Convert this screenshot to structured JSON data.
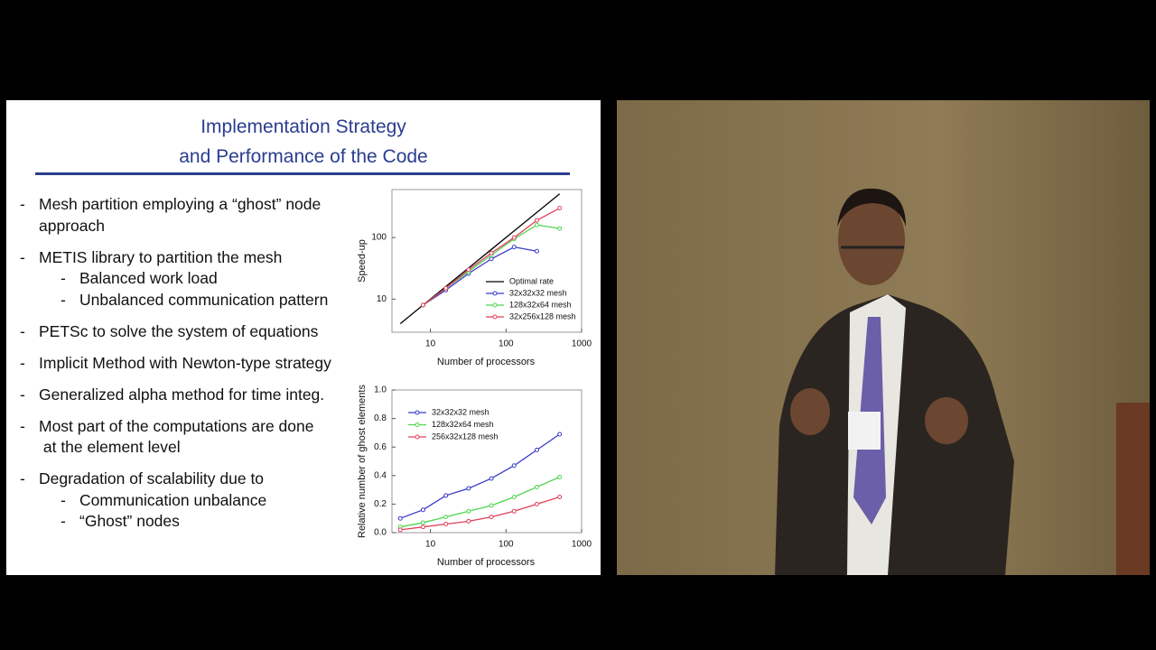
{
  "slide": {
    "title": [
      "Implementation Strategy",
      "and Performance of the Code"
    ],
    "bullets": [
      {
        "lines": [
          "Mesh partition employing a “ghost” node",
          "approach"
        ],
        "sub": []
      },
      {
        "lines": [
          "METIS library to partition the mesh"
        ],
        "sub": [
          "Balanced work load",
          "Unbalanced communication pattern"
        ]
      },
      {
        "lines": [
          "PETSc to solve the system of equations"
        ],
        "sub": []
      },
      {
        "lines": [
          "Implicit Method with Newton-type strategy"
        ],
        "sub": []
      },
      {
        "lines": [
          "Generalized alpha method for time integ."
        ],
        "sub": []
      },
      {
        "lines": [
          "Most part of the computations are done",
          " at the element level"
        ],
        "sub": []
      },
      {
        "lines": [
          "Degradation of scalability due to"
        ],
        "sub": [
          "Communication unbalance",
          "“Ghost” nodes"
        ]
      }
    ]
  },
  "chart_data": [
    {
      "type": "line",
      "xlabel": "Number of processors",
      "ylabel": "Speed-up",
      "x": [
        4,
        8,
        16,
        32,
        64,
        128,
        256,
        512
      ],
      "xscale": "log",
      "yscale": "log",
      "xlim": [
        3.1,
        1000
      ],
      "ylim": [
        2.9,
        600
      ],
      "xticks": [
        10,
        100,
        1000
      ],
      "yticks": [
        10,
        100
      ],
      "legend": "lower right",
      "series": [
        {
          "name": "Optimal rate",
          "color": "#000000",
          "markers": false,
          "values": [
            4,
            8,
            16,
            32,
            64,
            128,
            256,
            512
          ]
        },
        {
          "name": "32x32x32 mesh",
          "color": "#3a3ac8",
          "markers": true,
          "values": [
            null,
            8,
            14,
            26,
            45,
            70,
            60,
            null
          ]
        },
        {
          "name": "128x32x64 mesh",
          "color": "#4fd64f",
          "markers": true,
          "values": [
            null,
            8,
            15,
            28,
            52,
            95,
            160,
            140
          ]
        },
        {
          "name": "32x256x128 mesh",
          "color": "#e0405a",
          "markers": true,
          "values": [
            null,
            8,
            15,
            30,
            56,
            100,
            190,
            300
          ]
        }
      ]
    },
    {
      "type": "line",
      "xlabel": "Number of processors",
      "ylabel": "Relative number of ghost elements",
      "x": [
        4,
        8,
        16,
        32,
        64,
        128,
        256,
        512
      ],
      "xscale": "log",
      "yscale": "linear",
      "xlim": [
        3.1,
        1000
      ],
      "ylim": [
        0,
        1
      ],
      "xticks": [
        10,
        100,
        1000
      ],
      "yticks": [
        {
          "value": 0,
          "label": "0.0"
        },
        0.2,
        0.4,
        0.6,
        0.8,
        {
          "value": 1,
          "label": "1.0"
        }
      ],
      "legend": "upper left",
      "series": [
        {
          "name": "32x32x32 mesh",
          "color": "#3a3ac8",
          "markers": true,
          "values": [
            0.1,
            0.16,
            0.26,
            0.31,
            0.38,
            0.47,
            0.58,
            0.69
          ]
        },
        {
          "name": "128x32x64 mesh",
          "color": "#4fd64f",
          "markers": true,
          "values": [
            0.04,
            0.07,
            0.11,
            0.15,
            0.19,
            0.25,
            0.32,
            0.39
          ]
        },
        {
          "name": "256x32x128 mesh",
          "color": "#e0405a",
          "markers": true,
          "values": [
            0.02,
            0.04,
            0.06,
            0.08,
            0.11,
            0.15,
            0.2,
            0.25
          ]
        }
      ]
    }
  ]
}
